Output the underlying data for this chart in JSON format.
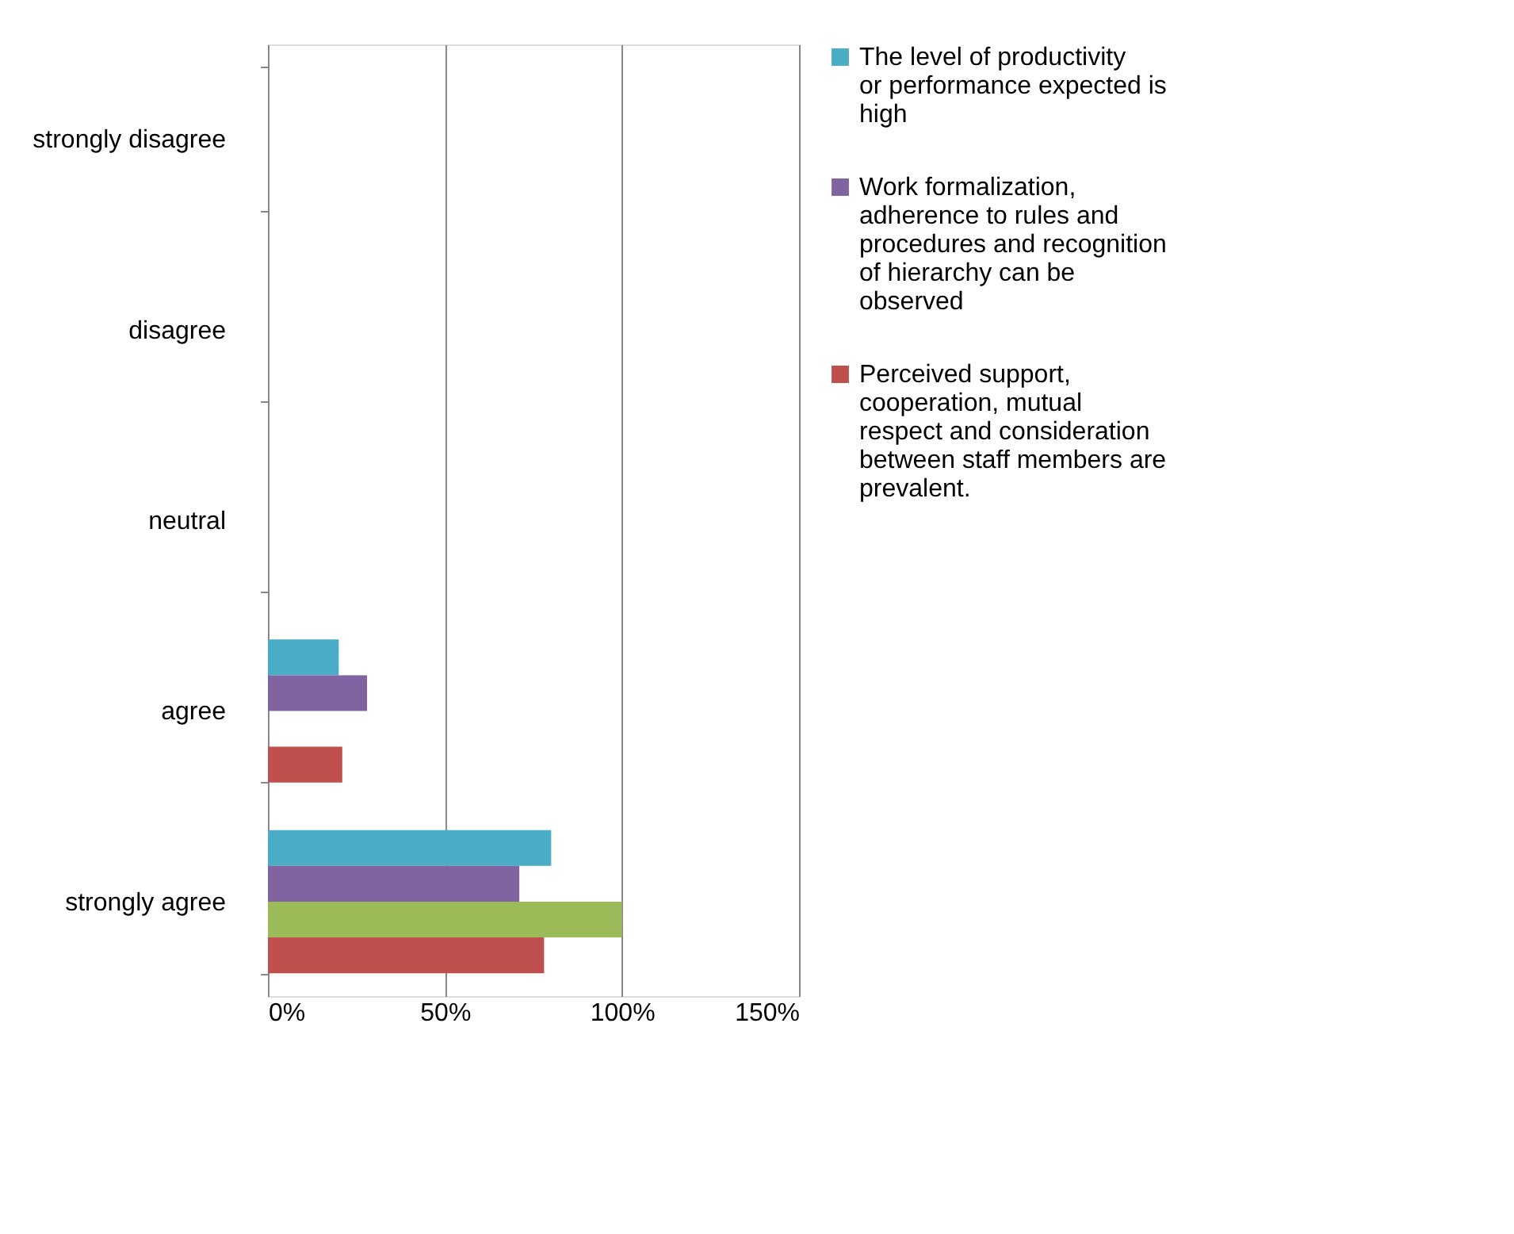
{
  "chart_data": {
    "type": "bar",
    "orientation": "horizontal",
    "categories": [
      "strongly disagree",
      "disagree",
      "neutral",
      "agree",
      "strongly agree"
    ],
    "series": [
      {
        "name": "The level of productivity or performance expected is high",
        "color": "#4bacc6",
        "values": [
          null,
          null,
          null,
          20,
          80
        ]
      },
      {
        "name": "Work formalization, adherence to rules and procedures and recognition of hierarchy can be observed",
        "color": "#8064a2",
        "values": [
          null,
          null,
          null,
          28,
          71
        ]
      },
      {
        "color": "#9bbb59",
        "values": [
          null,
          null,
          null,
          null,
          100
        ]
      },
      {
        "name": "Perceived support, cooperation, mutual respect and consideration between staff members are prevalent.",
        "color": "#c0504d",
        "values": [
          null,
          null,
          null,
          21,
          78
        ]
      }
    ],
    "xlim": [
      0,
      150
    ],
    "xticks": [
      {
        "value": 0,
        "label": "0%"
      },
      {
        "value": 50,
        "label": "50%"
      },
      {
        "value": 100,
        "label": "100%"
      },
      {
        "value": 150,
        "label": "150%"
      }
    ],
    "grid": "x",
    "legend": "right"
  }
}
